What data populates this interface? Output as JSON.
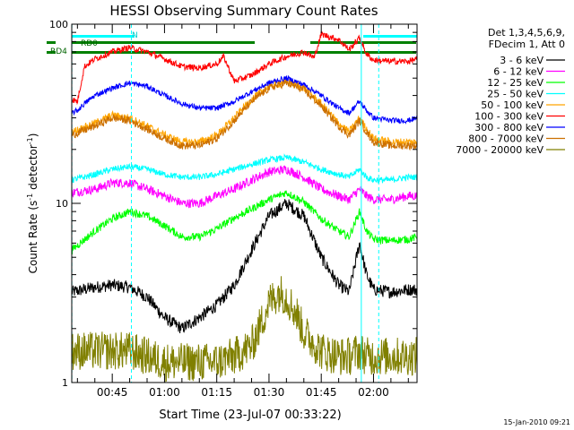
{
  "chart_data": {
    "type": "line",
    "title": "HESSI Observing Summary Count Rates",
    "xlabel": "Start Time (23-Jul-07 00:33:22)",
    "ylabel_main": "Count Rate (s",
    "ylabel_sup": "-1",
    "ylabel_tail": " detector",
    "ylabel_end": ")",
    "yscale": "log",
    "ylim": [
      1,
      100
    ],
    "xlim": [
      33.37,
      132.5
    ],
    "ytick_labels": [
      "1",
      "10",
      "100"
    ],
    "xtick_labels": [
      "00:45",
      "01:00",
      "01:15",
      "01:30",
      "01:45",
      "02:00"
    ],
    "x_ticks_min": [
      45,
      60,
      75,
      90,
      105,
      120
    ],
    "legend_header": [
      "Det 1,3,4,5,6,9,",
      "FDecim 1, Att 0"
    ],
    "legend_position": "right",
    "flag_labels": [
      "RD0",
      "RD4",
      "N"
    ],
    "night_bounds_min": [
      33.4,
      121.5
    ],
    "saa_bounds_min": [
      50.5,
      116.5
    ],
    "timestamp": "15-Jan-2010 09:21",
    "series": [
      {
        "name": "3 - 6 keV",
        "color": "#000000",
        "x": [
          33.4,
          40,
          45,
          50,
          55,
          60,
          65,
          70,
          75,
          80,
          85,
          90,
          95,
          100,
          105,
          110,
          113,
          116,
          118,
          120,
          125,
          130,
          132.5
        ],
        "y": [
          3.2,
          3.4,
          3.5,
          3.4,
          3.0,
          2.3,
          2.0,
          2.3,
          2.7,
          3.5,
          5.5,
          8.5,
          10,
          8.5,
          5.0,
          3.5,
          3.2,
          6.0,
          4.0,
          3.3,
          3.2,
          3.3,
          3.3
        ]
      },
      {
        "name": "6 - 12 keV",
        "color": "#ff00ff",
        "x": [
          33.4,
          40,
          45,
          50,
          55,
          60,
          65,
          70,
          75,
          80,
          85,
          90,
          95,
          100,
          105,
          110,
          113,
          116,
          118,
          120,
          125,
          130,
          132.5
        ],
        "y": [
          11.5,
          12,
          13,
          13,
          12,
          11,
          10,
          10,
          11,
          12,
          13.5,
          15,
          15.5,
          14,
          12,
          11,
          10.5,
          12,
          11,
          10.5,
          10.5,
          11,
          11
        ]
      },
      {
        "name": "12 - 25 keV",
        "color": "#00ff00",
        "x": [
          33.4,
          40,
          45,
          50,
          55,
          60,
          65,
          70,
          75,
          80,
          85,
          90,
          95,
          100,
          105,
          110,
          113,
          116,
          118,
          120,
          125,
          130,
          132.5
        ],
        "y": [
          5.5,
          7.0,
          8.2,
          9.0,
          8.5,
          7.5,
          6.5,
          6.5,
          7.2,
          8.3,
          9.3,
          10.5,
          11.5,
          10.2,
          8.2,
          7.0,
          6.5,
          9.0,
          7.0,
          6.3,
          6.2,
          6.3,
          6.5
        ]
      },
      {
        "name": "25 - 50 keV",
        "color": "#00ffff",
        "x": [
          33.4,
          40,
          45,
          50,
          55,
          60,
          65,
          70,
          75,
          80,
          85,
          90,
          95,
          100,
          105,
          110,
          113,
          116,
          118,
          120,
          125,
          130,
          132.5
        ],
        "y": [
          13.5,
          14.5,
          15.5,
          16,
          15.5,
          14.5,
          14,
          14,
          14.5,
          15.5,
          16.5,
          17.5,
          18,
          17,
          15.5,
          14.5,
          14,
          15.5,
          14,
          13.5,
          13.5,
          14,
          14
        ]
      },
      {
        "name": "50 - 100 keV",
        "color": "#ffa500",
        "x": [
          33.4,
          40,
          45,
          50,
          55,
          60,
          65,
          70,
          75,
          80,
          85,
          90,
          95,
          100,
          105,
          110,
          113,
          116,
          118,
          120,
          125,
          130,
          132.5
        ],
        "y": [
          25,
          28,
          31,
          30,
          27,
          24,
          22,
          22,
          24,
          30,
          38,
          45,
          48,
          44,
          36,
          28,
          25,
          30,
          26,
          23,
          22,
          22,
          22
        ]
      },
      {
        "name": "100 - 300 keV",
        "color": "#ff0000",
        "x": [
          33.4,
          35,
          37,
          40,
          45,
          50,
          55,
          60,
          65,
          70,
          75,
          77,
          80,
          85,
          90,
          95,
          100,
          103,
          105,
          110,
          113,
          116,
          118,
          120,
          125,
          130,
          132.5
        ],
        "y": [
          38,
          37,
          58,
          64,
          70,
          74,
          70,
          64,
          58,
          57,
          60,
          66,
          48,
          52,
          60,
          66,
          70,
          65,
          88,
          82,
          72,
          84,
          68,
          63,
          62,
          62,
          64
        ]
      },
      {
        "name": "300 - 800 keV",
        "color": "#0000ff",
        "x": [
          33.4,
          35,
          37,
          40,
          45,
          50,
          55,
          60,
          65,
          70,
          75,
          80,
          85,
          90,
          95,
          100,
          105,
          110,
          113,
          116,
          118,
          120,
          125,
          130,
          132.5
        ],
        "y": [
          32,
          33,
          36,
          40,
          44,
          47,
          45,
          40,
          36,
          34,
          34,
          37,
          42,
          47,
          50,
          46,
          40,
          34,
          32,
          37,
          33,
          30,
          29,
          29,
          30
        ]
      },
      {
        "name": "800 - 7000 keV",
        "color": "#cc7000",
        "x": [
          33.4,
          40,
          45,
          50,
          55,
          60,
          65,
          70,
          75,
          80,
          85,
          90,
          95,
          100,
          105,
          110,
          113,
          116,
          118,
          120,
          125,
          130,
          132.5
        ],
        "y": [
          24,
          27,
          30,
          29,
          26,
          23,
          21,
          21,
          23,
          29,
          37,
          44,
          47,
          43,
          35,
          27,
          24,
          29,
          25,
          22,
          21,
          21,
          21
        ]
      },
      {
        "name": "7000 - 20000 keV",
        "color": "#808000",
        "x": [
          33.4,
          40,
          45,
          50,
          55,
          60,
          65,
          70,
          75,
          80,
          85,
          88,
          90,
          93,
          95,
          98,
          100,
          105,
          110,
          113,
          116,
          118,
          120,
          125,
          130,
          132.5
        ],
        "y": [
          1.5,
          1.5,
          1.5,
          1.5,
          1.4,
          1.3,
          1.3,
          1.3,
          1.3,
          1.4,
          1.6,
          2.2,
          2.8,
          3.2,
          3.0,
          2.4,
          1.9,
          1.5,
          1.4,
          1.4,
          1.5,
          1.4,
          1.4,
          1.4,
          1.4,
          1.4
        ]
      }
    ]
  }
}
